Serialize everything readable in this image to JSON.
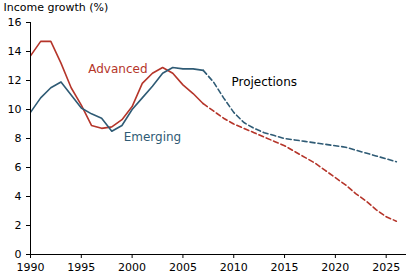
{
  "chart_data": {
    "type": "line",
    "y_label": "Income growth (%)",
    "x": [
      1990,
      1991,
      1992,
      1993,
      1994,
      1995,
      1996,
      1997,
      1998,
      1999,
      2000,
      2001,
      2002,
      2003,
      2004,
      2005,
      2006,
      2007,
      2008,
      2009,
      2010,
      2011,
      2012,
      2013,
      2014,
      2015,
      2016,
      2017,
      2018,
      2019,
      2020,
      2021,
      2022,
      2023,
      2024,
      2025,
      2026
    ],
    "series": [
      {
        "name": "Advanced",
        "color": "#b5352a",
        "line_style": "solid",
        "values": [
          13.7,
          14.7,
          14.7,
          13.2,
          11.5,
          10.3,
          8.9,
          8.7,
          8.8,
          9.3,
          10.2,
          11.8,
          12.5,
          12.9,
          12.5,
          11.7,
          11.1,
          10.4,
          null,
          null,
          null,
          null,
          null,
          null,
          null,
          null,
          null,
          null,
          null,
          null,
          null,
          null,
          null,
          null,
          null,
          null,
          null
        ]
      },
      {
        "name": "Advanced",
        "color": "#b5352a",
        "line_style": "dashed",
        "values": [
          null,
          null,
          null,
          null,
          null,
          null,
          null,
          null,
          null,
          null,
          null,
          null,
          null,
          null,
          null,
          null,
          null,
          10.4,
          9.9,
          9.4,
          9.0,
          8.7,
          8.4,
          8.1,
          7.8,
          7.5,
          7.1,
          6.7,
          6.3,
          5.8,
          5.3,
          4.8,
          4.2,
          3.7,
          3.1,
          2.6,
          2.3
        ]
      },
      {
        "name": "Emerging",
        "color": "#2f5b75",
        "line_style": "solid",
        "values": [
          9.8,
          10.8,
          11.5,
          11.9,
          11.0,
          10.1,
          9.7,
          9.4,
          8.5,
          8.9,
          10.0,
          10.8,
          11.6,
          12.5,
          12.9,
          12.8,
          12.8,
          12.7,
          null,
          null,
          null,
          null,
          null,
          null,
          null,
          null,
          null,
          null,
          null,
          null,
          null,
          null,
          null,
          null,
          null,
          null,
          null
        ]
      },
      {
        "name": "Emerging",
        "color": "#2f5b75",
        "line_style": "dashed",
        "values": [
          null,
          null,
          null,
          null,
          null,
          null,
          null,
          null,
          null,
          null,
          null,
          null,
          null,
          null,
          null,
          null,
          null,
          12.7,
          11.9,
          10.8,
          9.8,
          9.1,
          8.7,
          8.4,
          8.2,
          8.0,
          7.9,
          7.8,
          7.7,
          7.6,
          7.5,
          7.4,
          7.2,
          7.0,
          6.8,
          6.6,
          6.4
        ]
      }
    ],
    "annotations": [
      {
        "text": "Advanced",
        "x": 1998.6,
        "y": 12.8,
        "color": "#b5352a"
      },
      {
        "text": "Emerging",
        "x": 2002,
        "y": 8.1,
        "color": "#2f5b75"
      },
      {
        "text": "Projections",
        "x": 2013,
        "y": 11.9,
        "color": "#000000"
      }
    ],
    "xlim": [
      1990,
      2027
    ],
    "xticks": [
      1990,
      1995,
      2000,
      2005,
      2010,
      2015,
      2020,
      2025
    ],
    "ylim": [
      0,
      16
    ],
    "yticks": [
      0,
      2,
      4,
      6,
      8,
      10,
      12,
      14,
      16
    ],
    "grid": false
  }
}
